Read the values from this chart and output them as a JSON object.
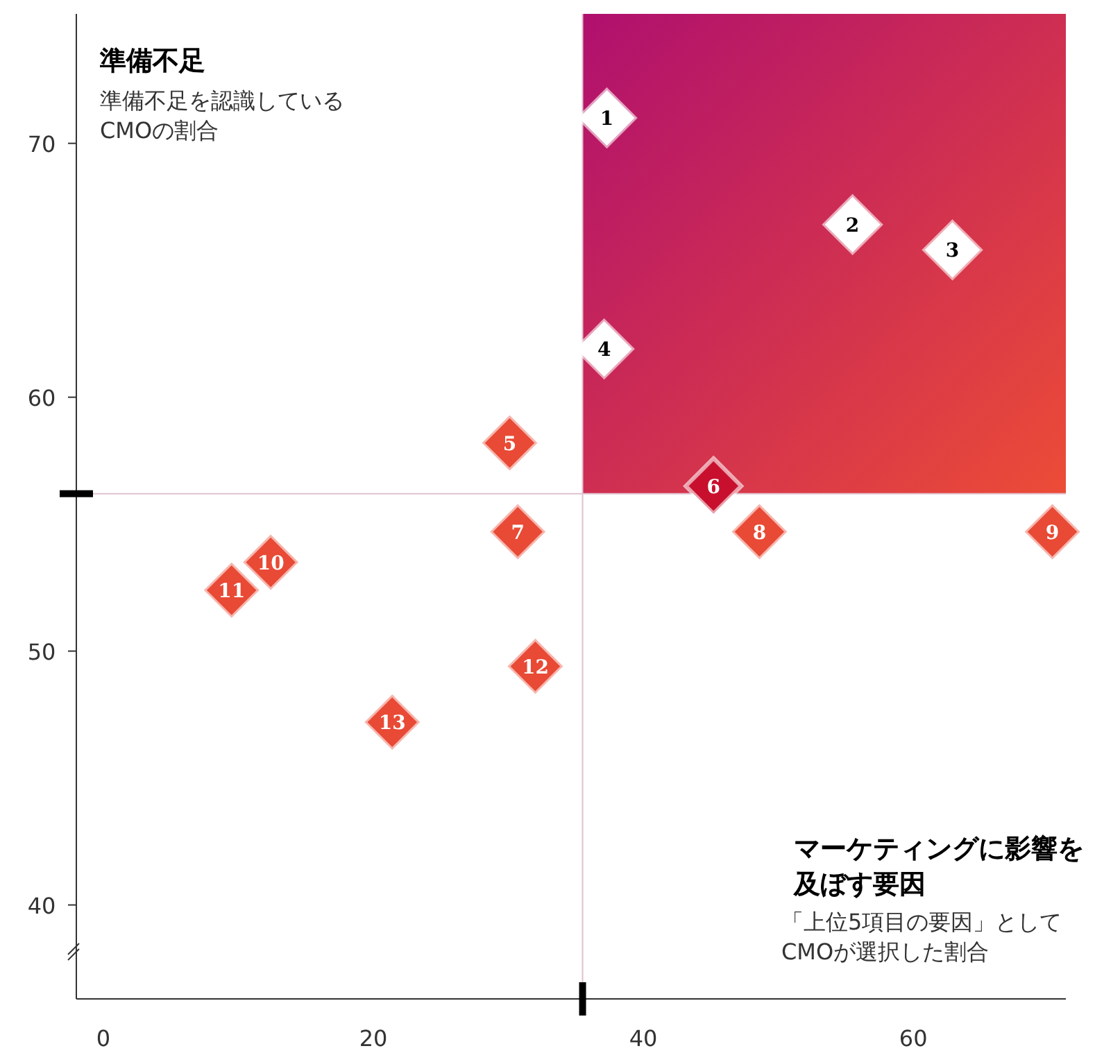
{
  "chart_data": {
    "type": "scatter",
    "ylabel": "準備不足",
    "xlabel": "マーケティングに影響を及ぼす要因",
    "x": [
      37.3,
      55.5,
      62.9,
      37.1,
      30.1,
      45.2,
      30.7,
      48.6,
      70.3,
      12.4,
      9.5,
      32.0,
      21.4
    ],
    "values": [
      71.0,
      66.8,
      65.8,
      61.9,
      58.2,
      56.5,
      54.7,
      54.7,
      54.7,
      53.5,
      52.4,
      49.4,
      47.2
    ],
    "colors": [
      "#ffffff",
      "#ffffff",
      "#ffffff",
      "#ffffff",
      "#e84a35",
      "#c8102e",
      "#e84a35",
      "#e84a35",
      "#e84a35",
      "#e84a35",
      "#e84a35",
      "#e84a35",
      "#e84a35"
    ],
    "marker": "diamond",
    "xlim": [
      -2,
      71.3
    ],
    "ylim": [
      36.3,
      75.1
    ],
    "xticks": [
      0,
      20,
      40,
      60
    ],
    "yticks": [
      40,
      50,
      60,
      70
    ],
    "ref_lines": [
      {
        "axis": "x",
        "value": 35.5
      },
      {
        "axis": "y",
        "value": 56.2
      }
    ],
    "annotations": [
      {
        "text": "1",
        "x": 37.3,
        "y": 71.0
      },
      {
        "text": "2",
        "x": 55.5,
        "y": 66.8
      },
      {
        "text": "3",
        "x": 62.9,
        "y": 65.8
      },
      {
        "text": "4",
        "x": 37.1,
        "y": 61.9
      },
      {
        "text": "5",
        "x": 30.1,
        "y": 58.2
      },
      {
        "text": "6",
        "x": 45.2,
        "y": 56.5
      },
      {
        "text": "7",
        "x": 30.7,
        "y": 54.7
      },
      {
        "text": "8",
        "x": 48.6,
        "y": 54.7
      },
      {
        "text": "9",
        "x": 70.3,
        "y": 54.7
      },
      {
        "text": "10",
        "x": 12.4,
        "y": 53.5
      },
      {
        "text": "11",
        "x": 9.5,
        "y": 52.4
      },
      {
        "text": "12",
        "x": 32.0,
        "y": 49.4
      },
      {
        "text": "13",
        "x": 21.4,
        "y": 47.2
      },
      "準備不足を認識しているCMOの割合",
      "「上位5項目の要因」としてCMOが選択した割合"
    ]
  }
}
